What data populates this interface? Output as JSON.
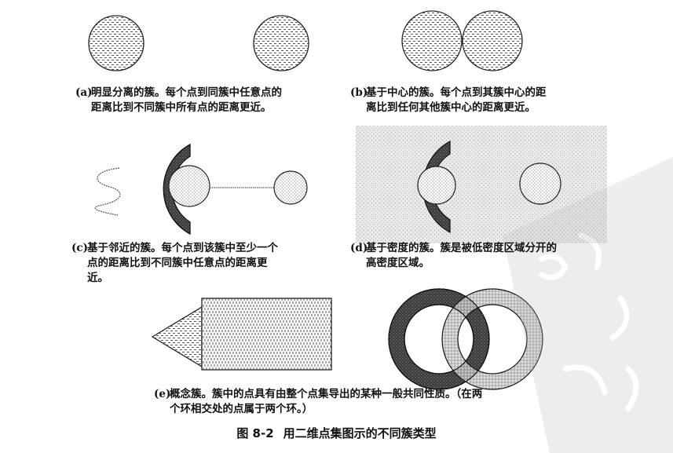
{
  "figure": {
    "number": "图 8-2",
    "title": "用二维点集图示的不同簇类型"
  },
  "panels": {
    "a": {
      "label": "(a)",
      "line1": "明显分离的簇。每个点到同簇中任意点的",
      "line2": "距离比到不同簇中所有点的距离更近。"
    },
    "b": {
      "label": "(b)",
      "line1": "基于中心的簇。每个点到其簇中心的距",
      "line2": "离比到任何其他簇中心的距离更近。"
    },
    "c": {
      "label": "(c)",
      "line1": "基于邻近的簇。每个点到该簇中至少一个",
      "line2": "点的距离比到不同簇中任意点的距离更",
      "line3": "近。"
    },
    "d": {
      "label": "(d)",
      "line1": "基于密度的簇。簇是被低密度区域分开的",
      "line2": "高密度区域。"
    },
    "e": {
      "label": "(e)",
      "line1": "概念簇。簇中的点具有由整个点集导出的某种一般共同性质。（在两",
      "line2": "个环相交处的点属于两个环。）"
    }
  },
  "colors": {
    "ink": "#1a1a1a",
    "dark": "#4a4a4a",
    "light": "#cfcfcf",
    "bg": "#ffffff"
  }
}
